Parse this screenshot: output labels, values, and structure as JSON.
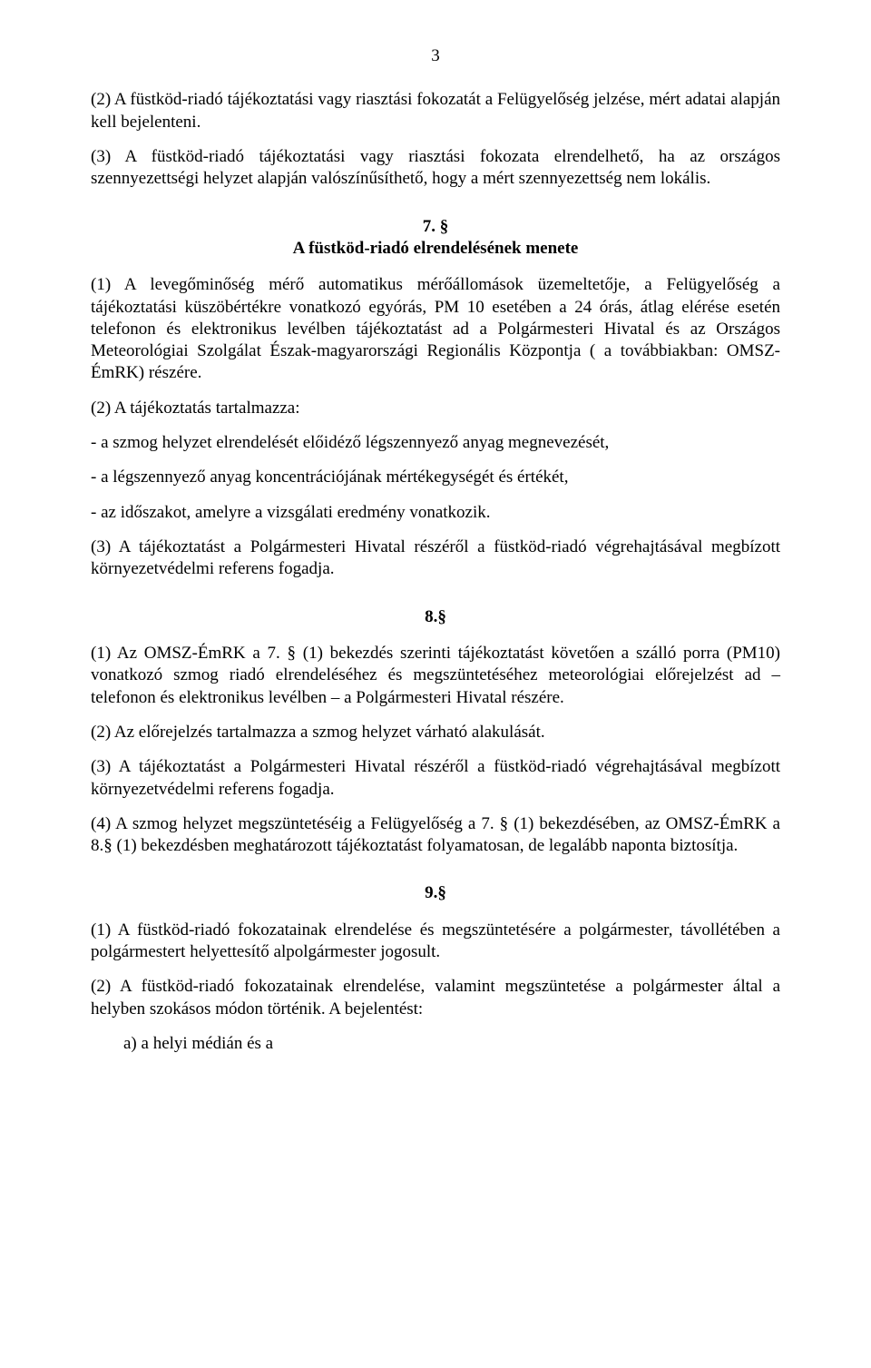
{
  "meta": {
    "page_number": "3",
    "font_family": "Times New Roman",
    "font_size_pt": 14,
    "text_color": "#000000",
    "background_color": "#ffffff"
  },
  "blocks": {
    "p1": "(2)  A füstköd-riadó tájékoztatási vagy riasztási fokozatát a Felügyelőség jelzése, mért adatai alapján kell bejelenteni.",
    "p2": "(3)  A füstköd-riadó tájékoztatási vagy riasztási fokozata elrendelhető, ha az országos szennyezettségi helyzet alapján valószínűsíthető, hogy a mért szennyezettség nem lokális.",
    "h7": "7. §\nA füstköd-riadó elrendelésének menete",
    "p3": "(1) A levegőminőség mérő automatikus mérőállomások üzemeltetője, a Felügyelőség a tájékoztatási küszöbértékre vonatkozó egyórás, PM 10 esetében a 24 órás, átlag elérése esetén telefonon és elektronikus levélben tájékoztatást ad a Polgármesteri Hivatal és az Országos Meteorológiai Szolgálat Észak-magyarországi Regionális Központja ( a továbbiakban: OMSZ-ÉmRK) részére.",
    "p4": "(2) A tájékoztatás tartalmazza:",
    "p5": "- a szmog helyzet elrendelését előidéző légszennyező anyag megnevezését,",
    "p6": "- a légszennyező anyag koncentrációjának mértékegységét és értékét,",
    "p7": "- az időszakot, amelyre a vizsgálati eredmény vonatkozik.",
    "p8": "(3) A tájékoztatást a Polgármesteri Hivatal részéről a füstköd-riadó végrehajtásával megbízott környezetvédelmi referens fogadja.",
    "h8": "8.§",
    "p9": "(1) Az OMSZ-ÉmRK a 7. § (1) bekezdés szerinti tájékoztatást követően a szálló porra (PM10) vonatkozó szmog riadó elrendeléséhez és megszüntetéséhez meteorológiai előrejelzést ad – telefonon és elektronikus levélben – a Polgármesteri Hivatal részére.",
    "p10": "(2) Az előrejelzés tartalmazza a szmog helyzet várható alakulását.",
    "p11": "(3) A tájékoztatást a Polgármesteri Hivatal részéről a füstköd-riadó végrehajtásával megbízott környezetvédelmi referens fogadja.",
    "p12": "(4) A szmog helyzet megszüntetéséig a Felügyelőség a 7. § (1) bekezdésében, az OMSZ-ÉmRK a 8.§ (1) bekezdésben meghatározott tájékoztatást folyamatosan, de legalább naponta biztosítja.",
    "h9": "9.§",
    "p13": "(1) A füstköd-riadó fokozatainak elrendelése és megszüntetésére a polgármester, távollétében a polgármestert helyettesítő alpolgármester jogosult.",
    "p14": "(2) A füstköd-riadó fokozatainak elrendelése, valamint megszüntetése a polgármester által a helyben szokásos módon történik. A bejelentést:",
    "p15": "a) a helyi médián és a"
  }
}
